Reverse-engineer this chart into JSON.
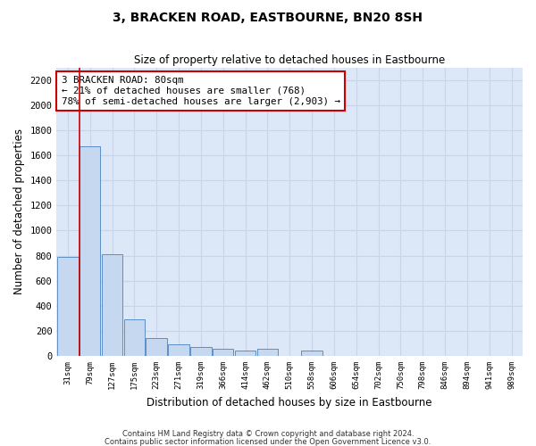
{
  "title": "3, BRACKEN ROAD, EASTBOURNE, BN20 8SH",
  "subtitle": "Size of property relative to detached houses in Eastbourne",
  "xlabel": "Distribution of detached houses by size in Eastbourne",
  "ylabel": "Number of detached properties",
  "categories": [
    "31sqm",
    "79sqm",
    "127sqm",
    "175sqm",
    "223sqm",
    "271sqm",
    "319sqm",
    "366sqm",
    "414sqm",
    "462sqm",
    "510sqm",
    "558sqm",
    "606sqm",
    "654sqm",
    "702sqm",
    "750sqm",
    "798sqm",
    "846sqm",
    "894sqm",
    "941sqm",
    "989sqm"
  ],
  "values": [
    790,
    1670,
    810,
    290,
    140,
    95,
    75,
    55,
    40,
    55,
    0,
    40,
    0,
    0,
    0,
    0,
    0,
    0,
    0,
    0,
    0
  ],
  "bar_color": "#c5d8f0",
  "bar_edge_color": "#5b8fc9",
  "vline_x_idx": 1,
  "vline_color": "#cc0000",
  "annotation_text": "3 BRACKEN ROAD: 80sqm\n← 21% of detached houses are smaller (768)\n78% of semi-detached houses are larger (2,903) →",
  "annotation_box_facecolor": "#ffffff",
  "annotation_box_edgecolor": "#cc0000",
  "grid_color": "#c8d4e8",
  "background_color": "#dce8f8",
  "ylim": [
    0,
    2300
  ],
  "yticks": [
    0,
    200,
    400,
    600,
    800,
    1000,
    1200,
    1400,
    1600,
    1800,
    2000,
    2200
  ],
  "footer1": "Contains HM Land Registry data © Crown copyright and database right 2024.",
  "footer2": "Contains public sector information licensed under the Open Government Licence v3.0."
}
